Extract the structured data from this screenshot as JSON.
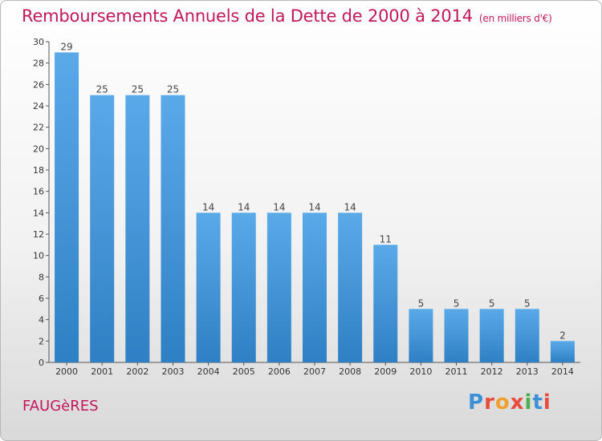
{
  "title": "Remboursements Annuels de la Dette de 2000 à 2014",
  "subtitle": "(en milliers d'€)",
  "commune": "FAUGèRES",
  "logo": "Proxiti",
  "colors": {
    "title": "#c2185b",
    "bar_top": "#5aaaea",
    "bar_bottom": "#2f7fc4",
    "logo_letters": [
      "#3d8fd6",
      "#e84c3d",
      "#f0a030",
      "#e84c3d",
      "#4caf50",
      "#3d8fd6",
      "#e84c3d"
    ]
  },
  "chart_data": {
    "type": "bar",
    "title": "Remboursements Annuels de la Dette de 2000 à 2014",
    "subtitle": "(en milliers d'€)",
    "categories": [
      "2000",
      "2001",
      "2002",
      "2003",
      "2004",
      "2005",
      "2006",
      "2007",
      "2008",
      "2009",
      "2010",
      "2011",
      "2012",
      "2013",
      "2014"
    ],
    "values": [
      29,
      25,
      25,
      25,
      14,
      14,
      14,
      14,
      14,
      11,
      5,
      5,
      5,
      5,
      2
    ],
    "data_labels": [
      "29",
      "25",
      "25",
      "25",
      "14",
      "14",
      "14",
      "14",
      "14",
      "11",
      "5",
      "5",
      "5",
      "5",
      "2"
    ],
    "ylim": [
      0,
      30
    ],
    "yticks": [
      "0",
      "2",
      "4",
      "6",
      "8",
      "10",
      "12",
      "14",
      "16",
      "18",
      "20",
      "22",
      "24",
      "26",
      "28",
      "30"
    ],
    "grid": false,
    "xlabel": "",
    "ylabel": ""
  }
}
